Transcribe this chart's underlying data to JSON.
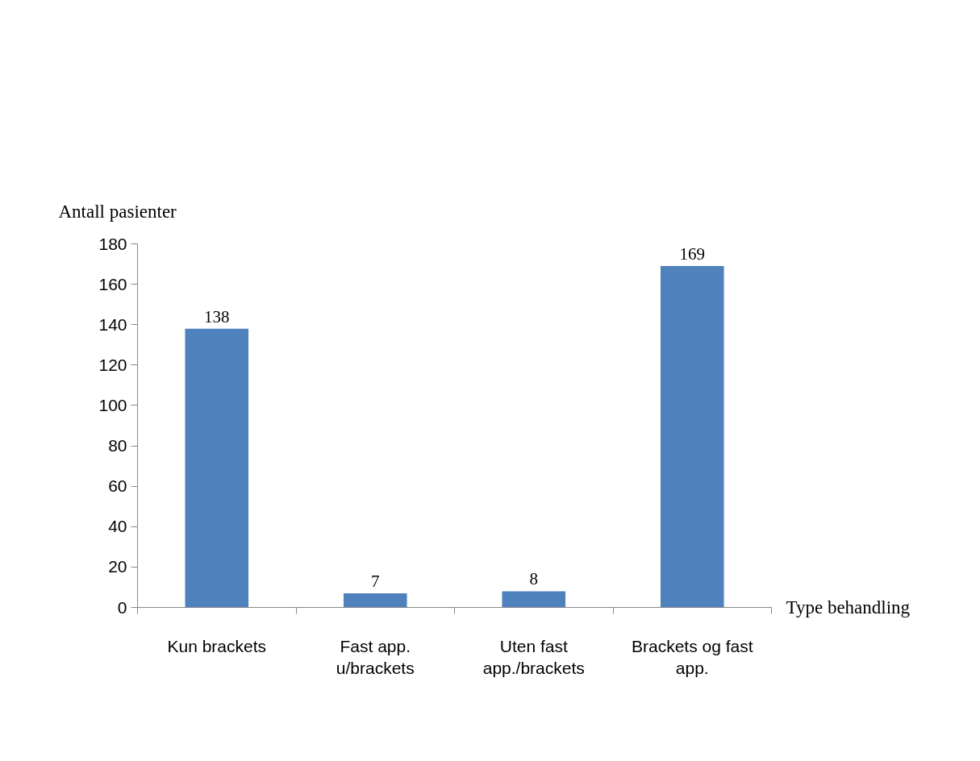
{
  "chart_data": {
    "type": "bar",
    "categories": [
      "Kun brackets",
      "Fast app.\nu/brackets",
      "Uten fast\napp./brackets",
      "Brackets og fast\napp."
    ],
    "values": [
      138,
      7,
      8,
      169
    ],
    "color": "#4f81bd",
    "ylabel": "Antall pasienter",
    "xlabel": "Type behandling",
    "ylim": [
      0,
      180
    ],
    "yticks": [
      0,
      20,
      40,
      60,
      80,
      100,
      120,
      140,
      160,
      180
    ],
    "data_labels": true,
    "grid": false
  }
}
